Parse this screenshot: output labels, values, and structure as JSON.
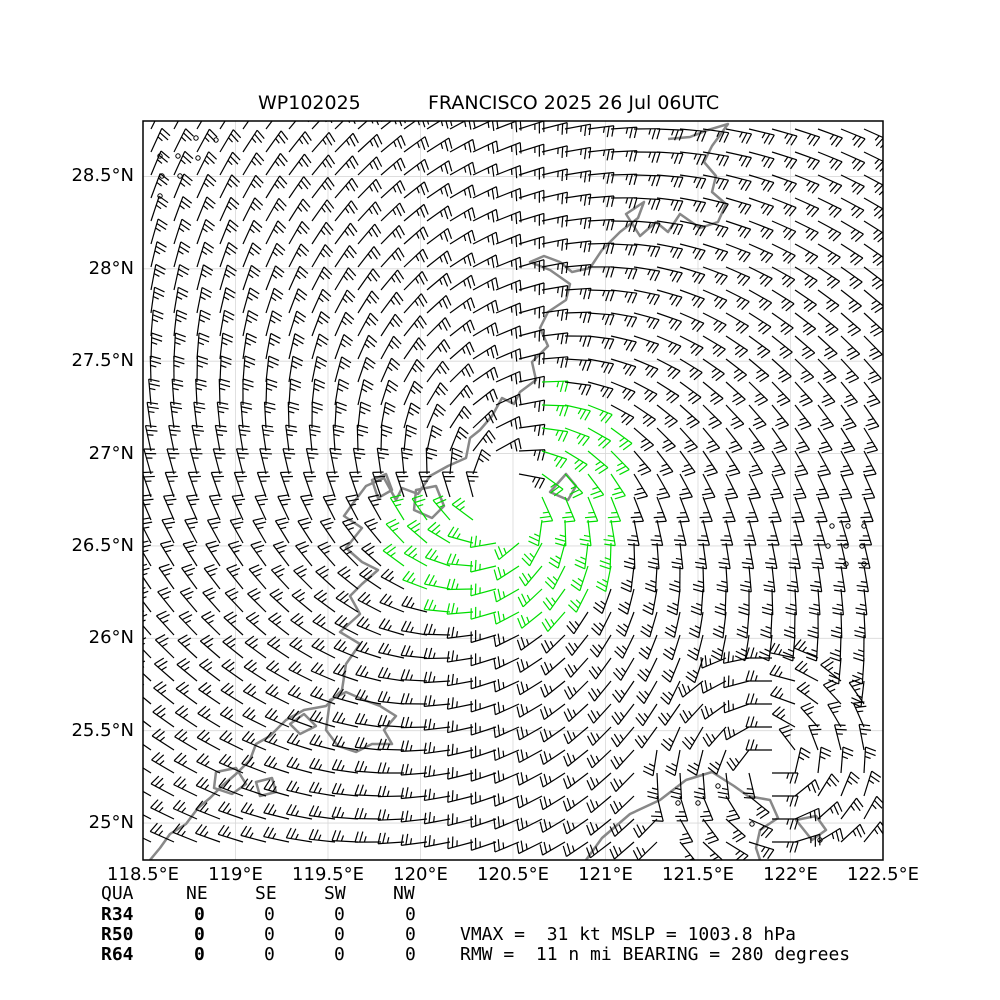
{
  "title": {
    "storm_id": "WP102025",
    "storm_info": "FRANCISCO 2025 26 Jul 06UTC"
  },
  "map": {
    "lat_labels": [
      "28.5°N",
      "28°N",
      "27.5°N",
      "27°N",
      "26.5°N",
      "26°N",
      "25.5°N",
      "25°N"
    ],
    "lat_values": [
      28.5,
      28.0,
      27.5,
      27.0,
      26.5,
      26.0,
      25.5,
      25.0
    ],
    "lon_labels": [
      "118.5°E",
      "119°E",
      "119.5°E",
      "120°E",
      "120.5°E",
      "121°E",
      "121.5°E",
      "122°E",
      "122.5°E"
    ],
    "lon_values": [
      118.5,
      119.0,
      119.5,
      120.0,
      120.5,
      121.0,
      121.5,
      122.0,
      122.5
    ],
    "lon_range": [
      118.5,
      122.5
    ],
    "lat_range": [
      24.8,
      28.8
    ],
    "grid": true,
    "storm_center": {
      "lon": 120.45,
      "lat": 26.75
    },
    "colors": {
      "barb": "#000000",
      "barb_highlight": "#00dd00",
      "coastline": "#888888",
      "gridline": "#d8d8d8"
    }
  },
  "wind_radii_table": {
    "headers": [
      "QUA",
      "NE",
      "SE",
      "SW",
      "NW"
    ],
    "rows": [
      {
        "label": "R34",
        "values": [
          "0",
          "0",
          "0",
          "0"
        ]
      },
      {
        "label": "R50",
        "values": [
          "0",
          "0",
          "0",
          "0"
        ]
      },
      {
        "label": "R64",
        "values": [
          "0",
          "0",
          "0",
          "0"
        ]
      }
    ]
  },
  "summary": {
    "line1": "VMAX =  31 kt MSLP = 1003.8 hPa",
    "line2": "RMW =  11 n mi BEARING = 280 degrees"
  }
}
